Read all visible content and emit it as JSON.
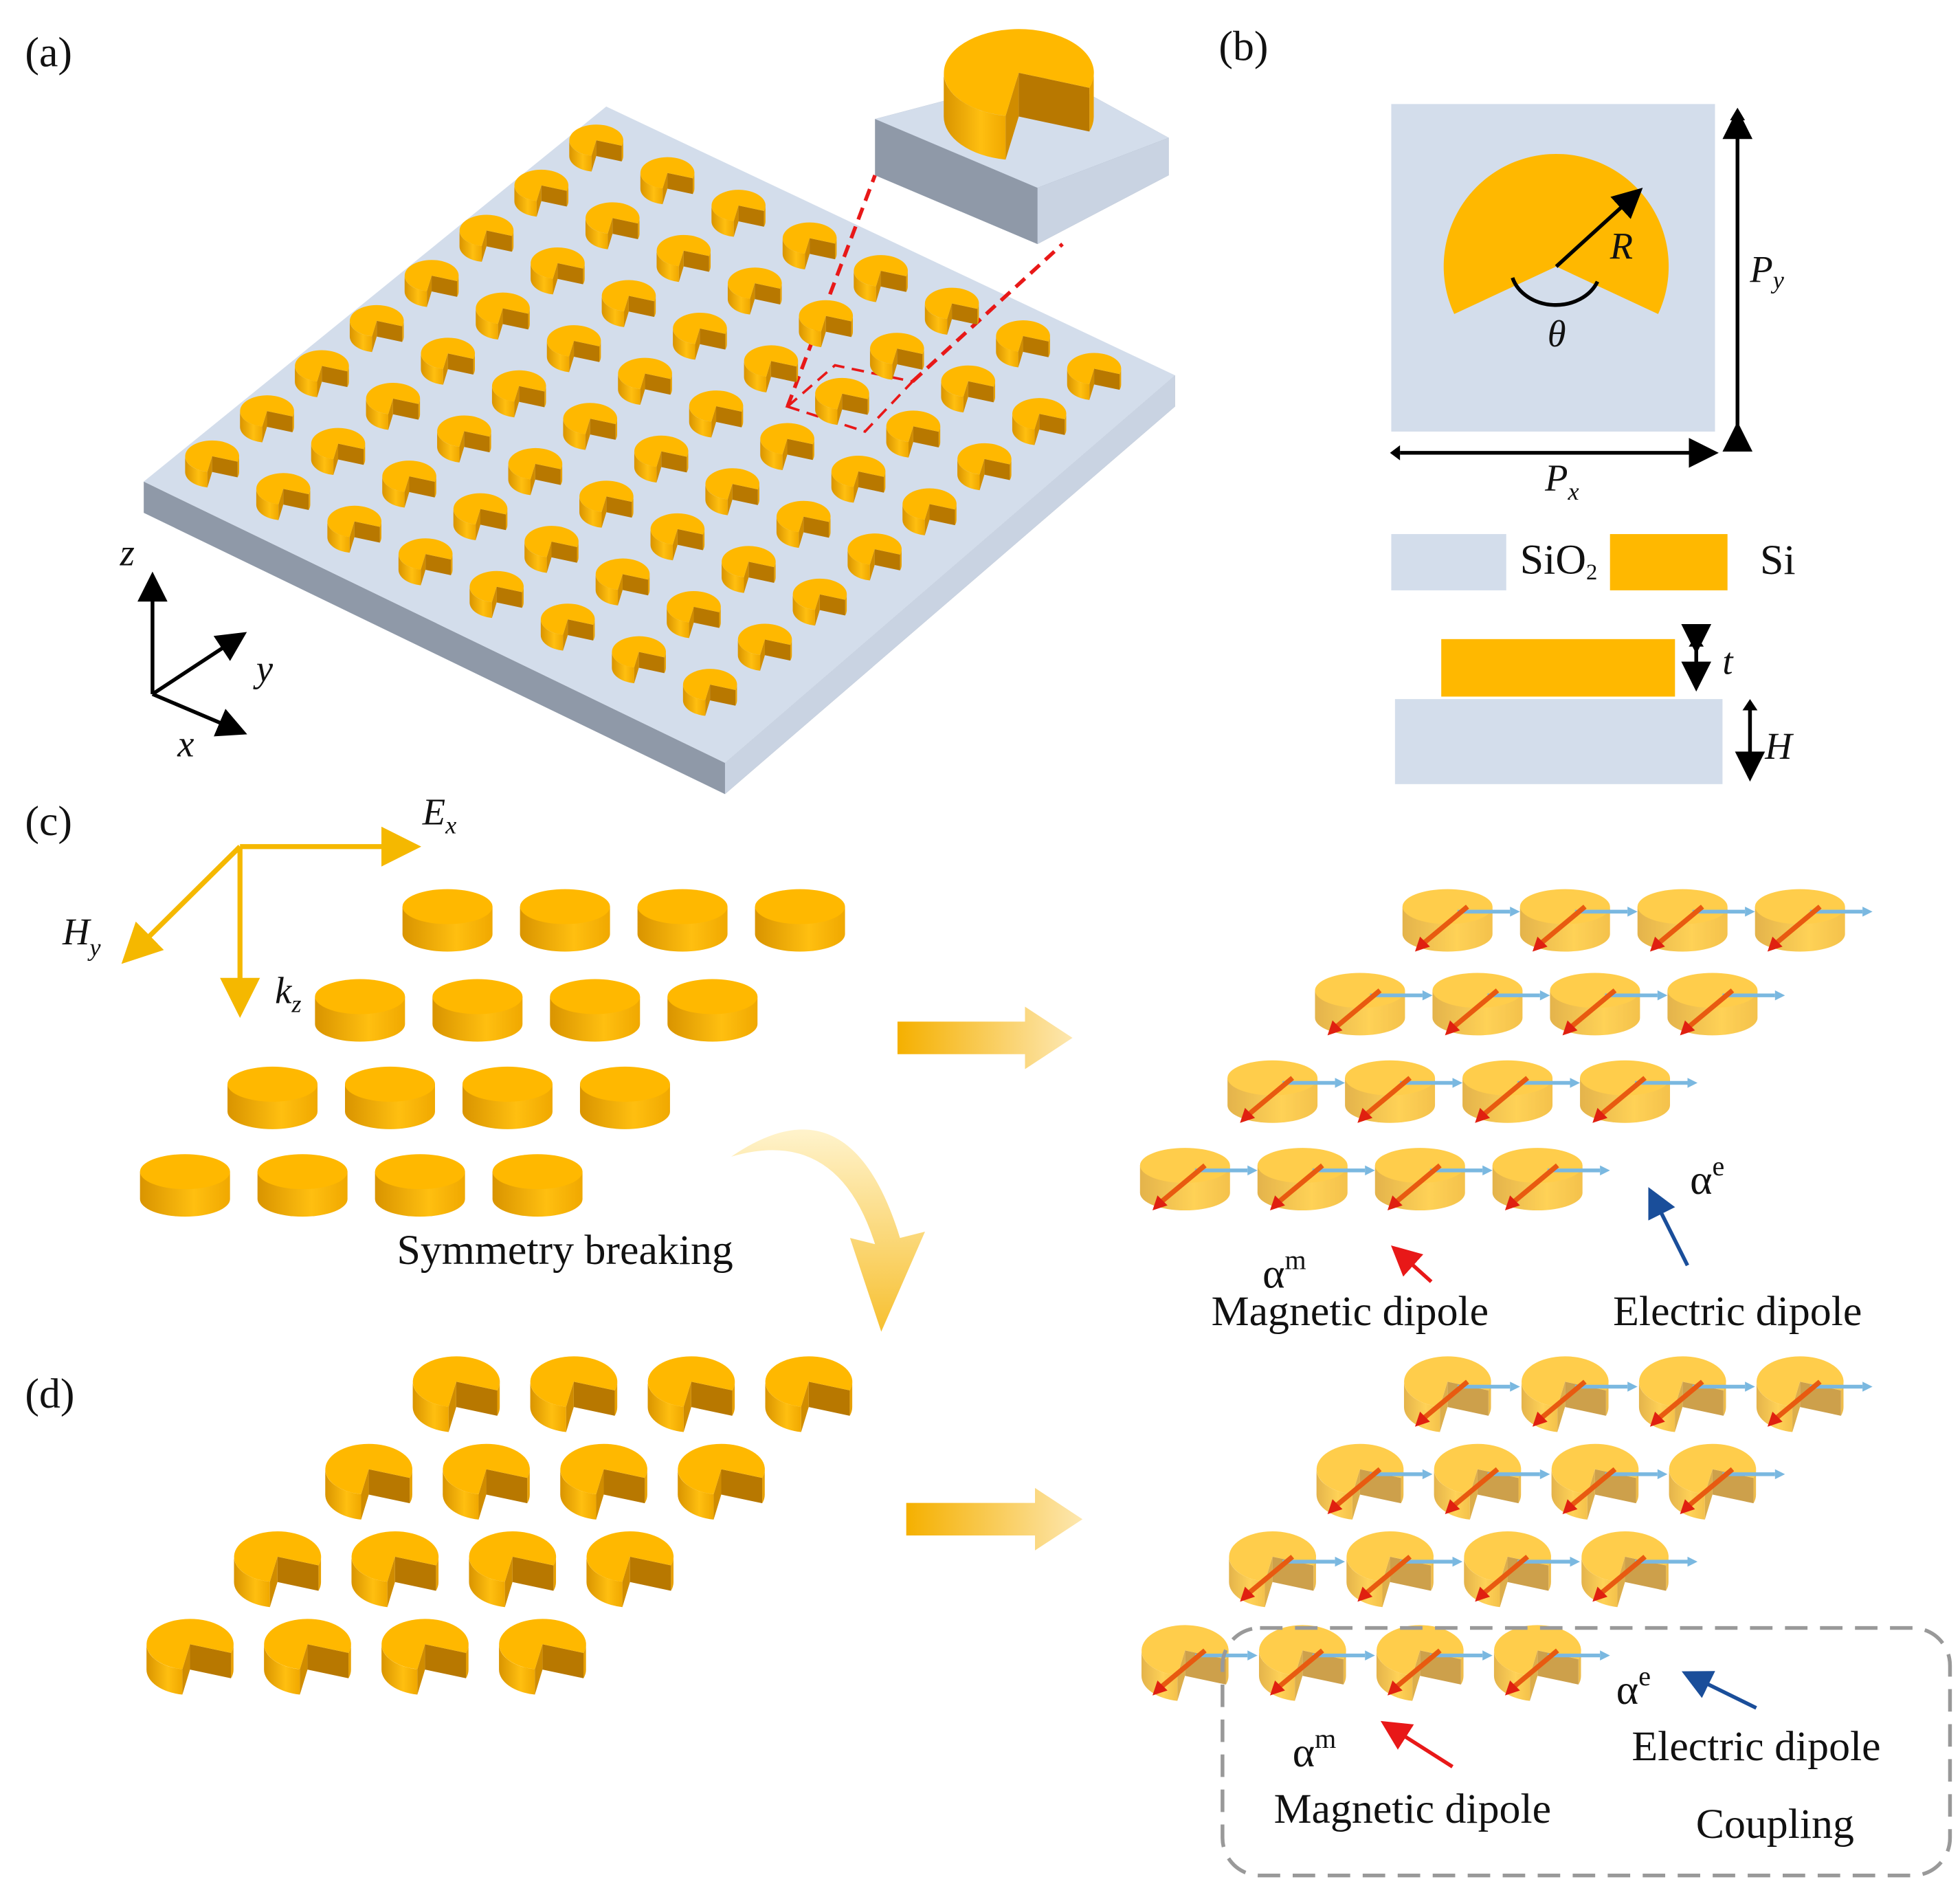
{
  "panels": {
    "a": {
      "label": "(a)",
      "axes": {
        "z": "z",
        "y": "y",
        "x": "x"
      }
    },
    "b": {
      "label": "(b)",
      "radius": "R",
      "angle": "θ",
      "period_y": {
        "main": "P",
        "sub": "y"
      },
      "period_x": {
        "main": "P",
        "sub": "x"
      },
      "legend": [
        {
          "label": "SiO",
          "sub": "2"
        },
        {
          "label": "Si"
        }
      ],
      "thickness": "t",
      "height": "H"
    },
    "c": {
      "label": "(c)",
      "field_e": {
        "main": "E",
        "sub": "x"
      },
      "field_h": {
        "main": "H",
        "sub": "y"
      },
      "wavevector": {
        "main": "k",
        "sub": "z"
      },
      "transition": "Symmetry breaking",
      "magnetic": {
        "symbol": "α",
        "sup": "m",
        "label": "Magnetic dipole"
      },
      "electric": {
        "symbol": "α",
        "sup": "e",
        "label": "Electric dipole"
      }
    },
    "d": {
      "label": "(d)",
      "magnetic": {
        "symbol": "α",
        "sup": "m",
        "label": "Magnetic dipole"
      },
      "electric": {
        "symbol": "α",
        "sup": "e",
        "label": "Electric dipole"
      },
      "coupling": "Coupling"
    }
  }
}
